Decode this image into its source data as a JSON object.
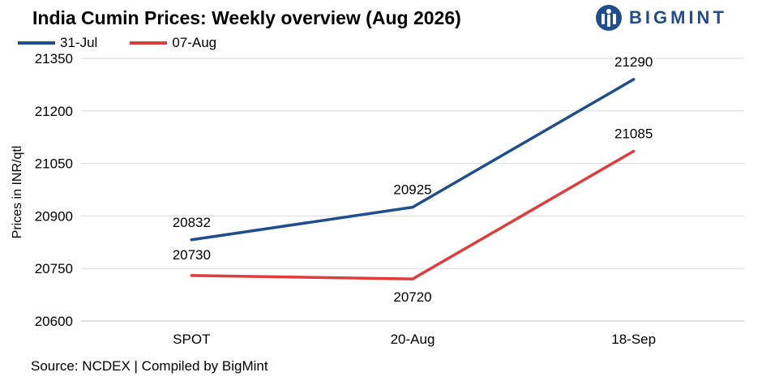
{
  "header": {
    "title": "India Cumin Prices: Weekly overview (Aug 2026)",
    "logo_text": "BIGMINT"
  },
  "footer": {
    "source": "Source: NCDEX | Compiled by BigMint"
  },
  "colors": {
    "series_1": "#1f4e8c",
    "series_2": "#e03c3c",
    "logo": "#1f4e8c",
    "grid": "#d9d9d9"
  },
  "chart_data": {
    "type": "line",
    "title": "India Cumin Prices: Weekly overview (Aug 2026)",
    "xlabel": "",
    "ylabel": "Prices in INR/qtl",
    "categories": [
      "SPOT",
      "20-Aug",
      "18-Sep"
    ],
    "series": [
      {
        "name": "31-Jul",
        "values": [
          20832,
          20925,
          21290
        ]
      },
      {
        "name": "07-Aug",
        "values": [
          20730,
          20720,
          21085
        ]
      }
    ],
    "ylim": [
      20600,
      21350
    ],
    "yticks": [
      20600,
      20750,
      20900,
      21050,
      21200,
      21350
    ],
    "grid": "horizontal",
    "legend": "top-left",
    "data_labels": true
  }
}
